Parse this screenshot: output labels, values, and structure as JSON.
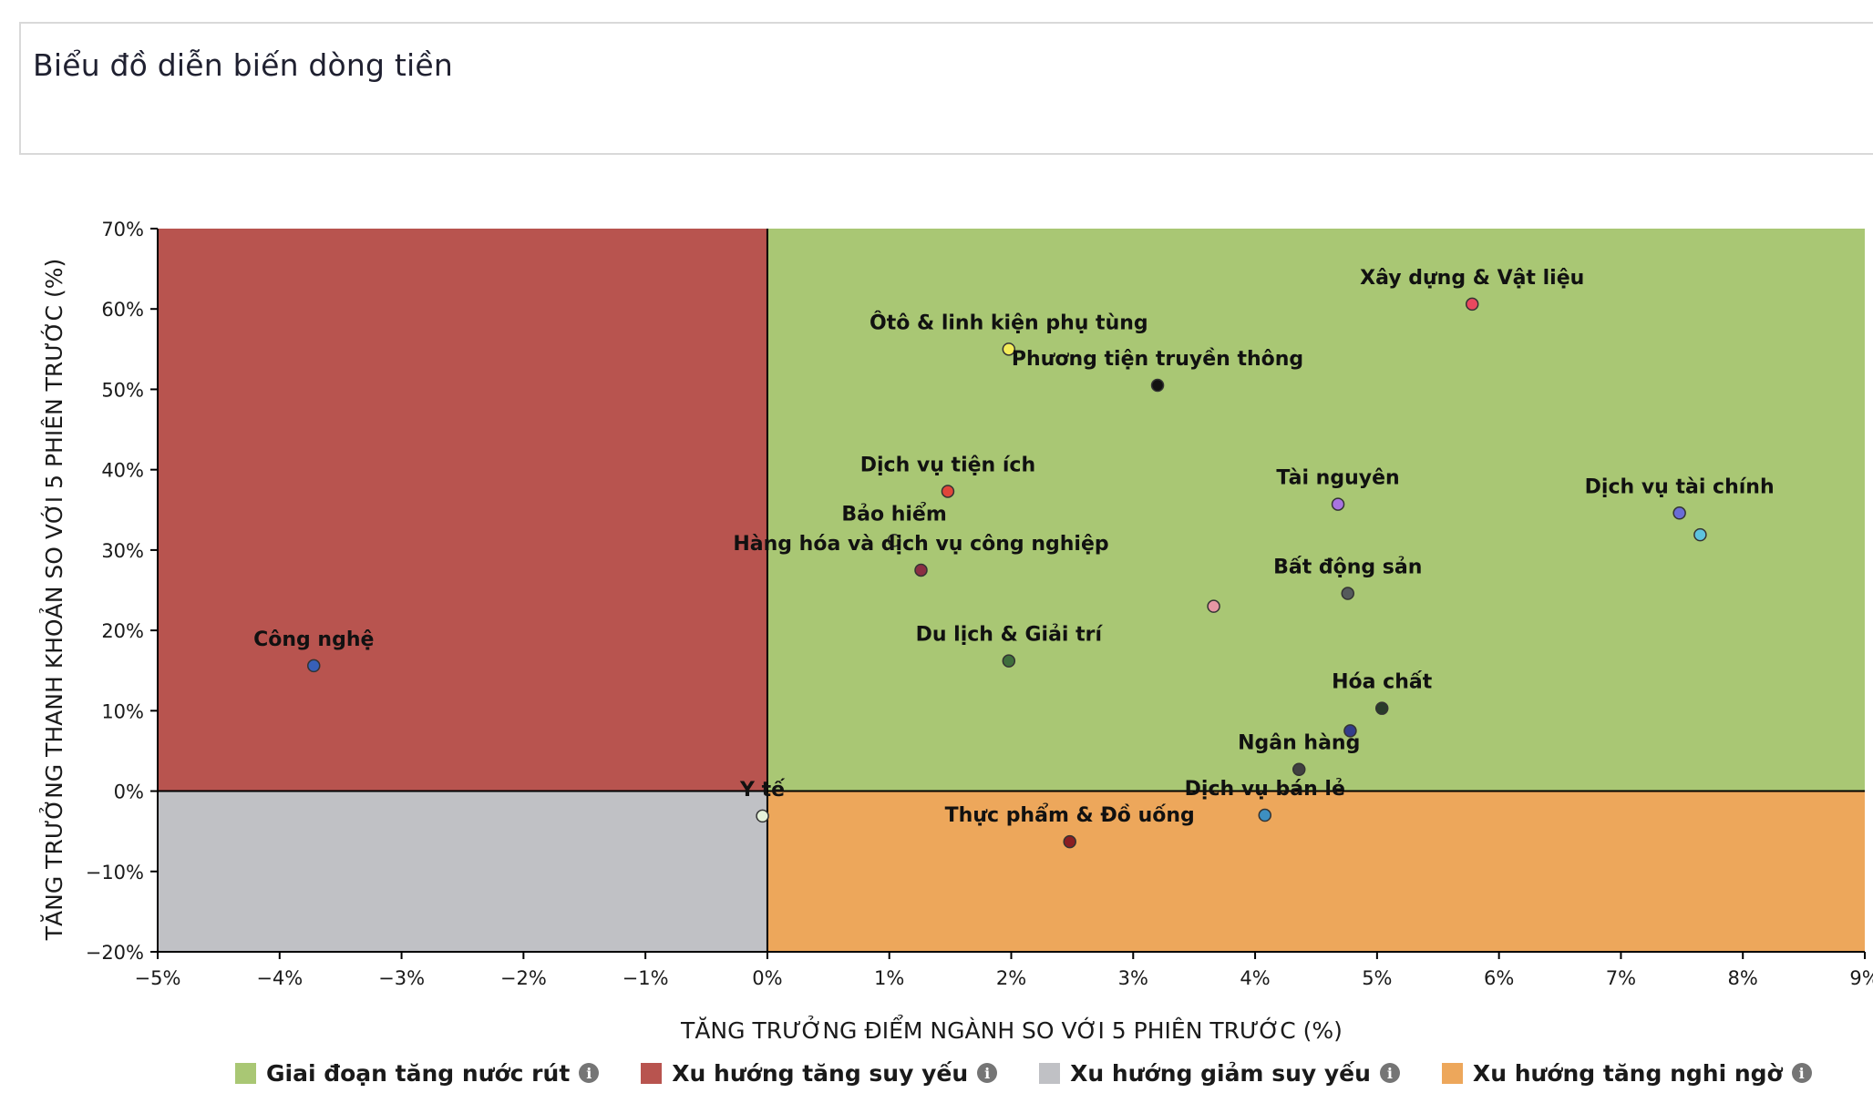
{
  "header": {
    "title": "Biểu đồ diễn biến dòng tiền"
  },
  "chart_data": {
    "type": "scatter",
    "title": "",
    "xlabel": "TĂNG TRƯỞNG ĐIỂM NGÀNH SO VỚI 5 PHIÊN TRƯỚC (%)",
    "ylabel": "TĂNG TRƯỞNG THANH KHOẢN SO VỚI 5 PHIÊN TRƯỚC (%)",
    "xlim": [
      -5,
      9
    ],
    "ylim": [
      -20,
      70
    ],
    "x_ticks": [
      "−5%",
      "−4%",
      "−3%",
      "−2%",
      "−1%",
      "0%",
      "1%",
      "2%",
      "3%",
      "4%",
      "5%",
      "6%",
      "7%",
      "8%",
      "9%"
    ],
    "y_ticks": [
      "−20%",
      "−10%",
      "0%",
      "10%",
      "20%",
      "30%",
      "40%",
      "50%",
      "60%",
      "70%"
    ],
    "grid": false,
    "legend_position": "bottom",
    "quadrants": [
      {
        "name": "Giai đoạn tăng nước rút",
        "color": "#a9c774",
        "region": "x>=0,y>=0"
      },
      {
        "name": "Xu hướng tăng suy yếu",
        "color": "#b8544f",
        "region": "x<0,y>=0"
      },
      {
        "name": "Xu hướng giảm suy yếu",
        "color": "#c0c1c5",
        "region": "x<0,y<0"
      },
      {
        "name": "Xu hướng tăng nghi ngờ",
        "color": "#eda75b",
        "region": "x>=0,y<0"
      }
    ],
    "points": [
      {
        "label": "Xây dựng & Vật liệu",
        "x": 5.78,
        "y": 60.6,
        "color": "#e8495f"
      },
      {
        "label": "Ôtô & linh kiện phụ tùng",
        "x": 1.98,
        "y": 55.0,
        "color": "#f3ec5a"
      },
      {
        "label": "Phương tiện truyền thông",
        "x": 3.2,
        "y": 50.5,
        "color": "#111111"
      },
      {
        "label": "Dịch vụ tiện ích",
        "x": 1.48,
        "y": 37.3,
        "color": "#e0453a"
      },
      {
        "label": "Tài nguyên",
        "x": 4.68,
        "y": 35.7,
        "color": "#a874e0"
      },
      {
        "label": "Dịch vụ tài chính",
        "x": 7.48,
        "y": 34.6,
        "color": "#6a6cd6"
      },
      {
        "label": "",
        "x": 7.65,
        "y": 31.9,
        "color": "#5ec3dd"
      },
      {
        "label": "Bảo hiểm",
        "x": 1.04,
        "y": 31.2,
        "color": "#a6bf6a"
      },
      {
        "label": "Hàng hóa và dịch vụ công nghiệp",
        "x": 1.26,
        "y": 27.5,
        "color": "#8a2f43"
      },
      {
        "label": "Bất động sản",
        "x": 4.76,
        "y": 24.6,
        "color": "#555a5c"
      },
      {
        "label": "",
        "x": 3.66,
        "y": 23.0,
        "color": "#e596a3"
      },
      {
        "label": "Du lịch & Giải trí",
        "x": 1.98,
        "y": 16.2,
        "color": "#3f6e3c"
      },
      {
        "label": "Công nghệ",
        "x": -3.72,
        "y": 15.6,
        "color": "#3760b8"
      },
      {
        "label": "Hóa chất",
        "x": 5.04,
        "y": 10.3,
        "color": "#2a3b2a"
      },
      {
        "label": "",
        "x": 4.78,
        "y": 7.5,
        "color": "#333d8a"
      },
      {
        "label": "Ngân hàng",
        "x": 4.36,
        "y": 2.7,
        "color": "#404040"
      },
      {
        "label": "Y tế",
        "x": -0.04,
        "y": -3.1,
        "color": "#e6f2da"
      },
      {
        "label": "Dịch vụ bán lẻ",
        "x": 4.08,
        "y": -3.0,
        "color": "#3d8fc1"
      },
      {
        "label": "Thực phẩm & Đồ uống",
        "x": 2.48,
        "y": -6.3,
        "color": "#8a1e22"
      }
    ]
  },
  "legend": {
    "items": [
      {
        "label": "Giai đoạn tăng nước rút",
        "color": "#a9c774"
      },
      {
        "label": "Xu hướng tăng suy yếu",
        "color": "#b8544f"
      },
      {
        "label": "Xu hướng giảm suy yếu",
        "color": "#c0c1c5"
      },
      {
        "label": "Xu hướng tăng nghi ngờ",
        "color": "#eda75b"
      }
    ],
    "info_glyph": "i"
  }
}
